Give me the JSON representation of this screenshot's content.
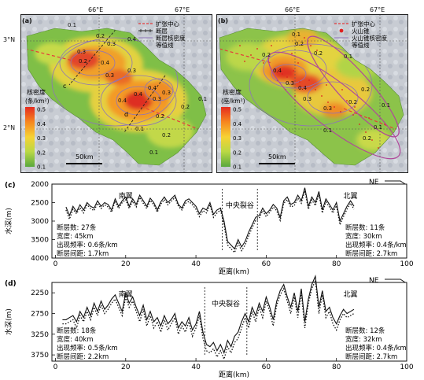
{
  "maps": [
    {
      "id": "a",
      "panel_label": "(a)",
      "lon_labels": [
        "66°E",
        "67°E"
      ],
      "lat_labels": [
        "3°N",
        "2°N"
      ],
      "legend": {
        "title_line1": "核密度",
        "title_line2": "(条/km²)",
        "ticks": [
          "0.5",
          "0.4",
          "0.3",
          "0.2",
          "0.1"
        ]
      },
      "key": [
        {
          "symbol": "red-dashed",
          "label": "扩张中心"
        },
        {
          "symbol": "black-fault",
          "label": "断层"
        },
        {
          "symbol": "contour",
          "label": "断层核密度"
        },
        {
          "symbol": "none",
          "label": "等值线"
        }
      ],
      "scale_label": "50km",
      "contour_labels": [
        "0.1",
        "0.2",
        "0.3",
        "0.4",
        "0.3",
        "0.2",
        "0.3",
        "0.4",
        "0.3",
        "0.4",
        "0.4",
        "0.4",
        "0.3",
        "0.3",
        "0.2",
        "0.2",
        "0.1",
        "0.1",
        "0.2",
        "0.1"
      ],
      "point_labels": [
        "c",
        "d"
      ]
    },
    {
      "id": "b",
      "panel_label": "(b)",
      "lon_labels": [
        "66°E",
        "67°E"
      ],
      "lat_labels": [],
      "legend": {
        "title_line1": "核密度",
        "title_line2": "(座/km²)",
        "ticks": [
          "0.5",
          "0.4",
          "0.3",
          "0.2",
          "0.1"
        ]
      },
      "key": [
        {
          "symbol": "red-dashed",
          "label": "扩张中心"
        },
        {
          "symbol": "red-dot",
          "label": "火山锥"
        },
        {
          "symbol": "contour",
          "label": "火山锥核密度"
        },
        {
          "symbol": "none",
          "label": "等值线"
        }
      ],
      "scale_label": "50km",
      "contour_labels": [
        "0.1",
        "0.2",
        "0.2",
        "0.1",
        "0.2",
        "0.4",
        "0.3",
        "0.4",
        "0.3",
        "0.3",
        "0.2",
        "0.2",
        "0.1",
        "0.1",
        "0.1",
        "0.2"
      ]
    }
  ],
  "colors": {
    "ramp": [
      "#e52b1f",
      "#f6861f",
      "#f7d234",
      "#b9d845",
      "#5aa83d"
    ],
    "spreading_center": "#e53a3a",
    "contour": "#8e74b8",
    "fault": "#222222",
    "volcano": "#e02020",
    "ellipse": "#b0489a"
  },
  "chart_data": [
    {
      "type": "line",
      "panel_label": "(c)",
      "xlabel": "距离(km)",
      "ylabel": "水深(m)",
      "xlim": [
        -1,
        100
      ],
      "ylim": [
        4000,
        2000
      ],
      "xticks": [
        0,
        20,
        40,
        60,
        80,
        100
      ],
      "yticks": [
        2000,
        2500,
        3000,
        3500,
        4000
      ],
      "direction_label": "NE",
      "region_labels": {
        "left": "南翼",
        "center": "中央裂谷",
        "right": "北翼"
      },
      "rift_x": [
        47.5,
        57.5
      ],
      "stats_left": [
        "断层数: 27条",
        "宽度: 45km",
        "出现频率: 0.6条/km",
        "断层间距: 1.7km"
      ],
      "stats_right": [
        "断层数: 11条",
        "宽度: 30km",
        "出现频率: 0.4条/km",
        "断层间距: 2.7km"
      ],
      "series": [
        {
          "style": "solid",
          "x": [
            3,
            4,
            5,
            6,
            7,
            8,
            9,
            10,
            11,
            12,
            13,
            14,
            15,
            16,
            17,
            18,
            19,
            20,
            21,
            22,
            23,
            24,
            25,
            26,
            27,
            28,
            29,
            30,
            31,
            32,
            33,
            34,
            35,
            36,
            37,
            38,
            39,
            40,
            41,
            42,
            43,
            44,
            45,
            46,
            47,
            48,
            49,
            50,
            51,
            52,
            53,
            54,
            55,
            56,
            57,
            58,
            59,
            60,
            61,
            62,
            63,
            64,
            65,
            66,
            67,
            68,
            69,
            70,
            71,
            72,
            73,
            74,
            75,
            76,
            77,
            78,
            79,
            80,
            81,
            82,
            83,
            84,
            85
          ],
          "y": [
            2620,
            2850,
            2600,
            2750,
            2560,
            2700,
            2500,
            2600,
            2650,
            2450,
            2600,
            2500,
            2550,
            2700,
            2400,
            2600,
            2450,
            2350,
            2600,
            2400,
            2550,
            2300,
            2450,
            2600,
            2380,
            2500,
            2700,
            2480,
            2350,
            2500,
            2400,
            2300,
            2550,
            2650,
            2450,
            2400,
            2500,
            2600,
            2800,
            2650,
            2700,
            2500,
            2820,
            2700,
            2650,
            3000,
            3550,
            3650,
            3750,
            3500,
            3700,
            3550,
            3300,
            3100,
            2900,
            2850,
            2650,
            2800,
            2700,
            2550,
            2650,
            2900,
            2450,
            2350,
            2550,
            2500,
            2300,
            2450,
            2100,
            2600,
            2350,
            2500,
            2200,
            2700,
            2400,
            2550,
            2700,
            2500,
            3000,
            2800,
            2600,
            2450,
            2600
          ]
        },
        {
          "style": "dashed",
          "x": [
            3,
            4,
            5,
            6,
            7,
            8,
            9,
            10,
            11,
            12,
            13,
            14,
            15,
            16,
            17,
            18,
            19,
            20,
            21,
            22,
            23,
            24,
            25,
            26,
            27,
            28,
            29,
            30,
            31,
            32,
            33,
            34,
            35,
            36,
            37,
            38,
            39,
            40,
            41,
            42,
            43,
            44,
            45,
            46,
            47,
            48,
            49,
            50,
            51,
            52,
            53,
            54,
            55,
            56,
            57,
            58,
            59,
            60,
            61,
            62,
            63,
            64,
            65,
            66,
            67,
            68,
            69,
            70,
            71,
            72,
            73,
            74,
            75,
            76,
            77,
            78,
            79,
            80,
            81,
            82,
            83,
            84,
            85
          ],
          "y": [
            2700,
            2950,
            2680,
            2800,
            2640,
            2780,
            2560,
            2660,
            2720,
            2520,
            2660,
            2560,
            2620,
            2760,
            2460,
            2660,
            2500,
            2420,
            2660,
            2460,
            2620,
            2360,
            2520,
            2660,
            2440,
            2560,
            2760,
            2540,
            2420,
            2560,
            2460,
            2360,
            2600,
            2700,
            2520,
            2470,
            2560,
            2680,
            2880,
            2720,
            2780,
            2560,
            2900,
            2780,
            2700,
            3100,
            3650,
            3750,
            3850,
            3600,
            3800,
            3650,
            3400,
            3180,
            2980,
            2920,
            2720,
            2880,
            2760,
            2620,
            2720,
            2980,
            2520,
            2420,
            2620,
            2580,
            2380,
            2520,
            2180,
            2680,
            2430,
            2580,
            2280,
            2780,
            2480,
            2620,
            2780,
            2580,
            3100,
            2880,
            2680,
            2520,
            2680
          ]
        }
      ]
    },
    {
      "type": "line",
      "panel_label": "(d)",
      "xlabel": "距离(km)",
      "ylabel": "水深(m)",
      "xlim": [
        -1,
        100
      ],
      "ylim": [
        3900,
        2000
      ],
      "xticks": [
        0,
        20,
        40,
        60,
        80,
        100
      ],
      "yticks": [
        2250,
        2750,
        3250,
        3750
      ],
      "direction_label": "NE",
      "region_labels": {
        "left": "南翼",
        "center": "中央裂谷",
        "right": "北翼"
      },
      "rift_x": [
        42.5,
        54.5
      ],
      "stats_left": [
        "断层数: 18条",
        "宽度: 40km",
        "出现频率: 0.5条/km",
        "断层间距: 2.2km"
      ],
      "stats_right": [
        "断层数: 12条",
        "宽度: 32km",
        "出现频率: 0.4条/km",
        "断层间距: 2.7km"
      ],
      "series": [
        {
          "style": "solid",
          "x": [
            2,
            3,
            4,
            5,
            6,
            7,
            8,
            9,
            10,
            11,
            12,
            13,
            14,
            15,
            16,
            17,
            18,
            19,
            20,
            21,
            22,
            23,
            24,
            25,
            26,
            27,
            28,
            29,
            30,
            31,
            32,
            33,
            34,
            35,
            36,
            37,
            38,
            39,
            40,
            41,
            42,
            43,
            44,
            45,
            46,
            47,
            48,
            49,
            50,
            51,
            52,
            53,
            54,
            55,
            56,
            57,
            58,
            59,
            60,
            61,
            62,
            63,
            64,
            65,
            66,
            67,
            68,
            69,
            70,
            71,
            72,
            73,
            74,
            75,
            76,
            77,
            78,
            79,
            80,
            81,
            82,
            83,
            84,
            85
          ],
          "y": [
            2900,
            2900,
            2850,
            2800,
            2950,
            2700,
            2850,
            2600,
            2800,
            2500,
            2700,
            2450,
            2650,
            2550,
            2400,
            2300,
            2500,
            2700,
            2250,
            2500,
            2350,
            2600,
            2800,
            2550,
            2900,
            2700,
            2950,
            2850,
            3050,
            2800,
            3000,
            2900,
            2750,
            3100,
            2950,
            3050,
            2850,
            3150,
            3000,
            2700,
            3200,
            3500,
            3550,
            3450,
            3650,
            3500,
            3700,
            3400,
            3550,
            3300,
            3200,
            2950,
            2750,
            2950,
            2600,
            2800,
            2500,
            2700,
            2350,
            2600,
            2900,
            2450,
            2200,
            2050,
            2350,
            2600,
            2250,
            2700,
            2150,
            2950,
            2400,
            2050,
            1850,
            2600,
            2200,
            2700,
            2600,
            2850,
            3000,
            2800,
            2650,
            2750,
            2700,
            2650
          ]
        },
        {
          "style": "dashed",
          "x": [
            2,
            3,
            4,
            5,
            6,
            7,
            8,
            9,
            10,
            11,
            12,
            13,
            14,
            15,
            16,
            17,
            18,
            19,
            20,
            21,
            22,
            23,
            24,
            25,
            26,
            27,
            28,
            29,
            30,
            31,
            32,
            33,
            34,
            35,
            36,
            37,
            38,
            39,
            40,
            41,
            42,
            43,
            44,
            45,
            46,
            47,
            48,
            49,
            50,
            51,
            52,
            53,
            54,
            55,
            56,
            57,
            58,
            59,
            60,
            61,
            62,
            63,
            64,
            65,
            66,
            67,
            68,
            69,
            70,
            71,
            72,
            73,
            74,
            75,
            76,
            77,
            78,
            79,
            80,
            81,
            82,
            83,
            84,
            85
          ],
          "y": [
            3000,
            3000,
            2950,
            2900,
            3100,
            2800,
            2950,
            2700,
            2900,
            2600,
            2800,
            2550,
            2750,
            2650,
            2500,
            2400,
            2600,
            2800,
            2350,
            2600,
            2450,
            2700,
            2950,
            2650,
            3050,
            2800,
            3100,
            2950,
            3200,
            2900,
            3150,
            3000,
            2850,
            3250,
            3050,
            3200,
            2950,
            3300,
            3100,
            2800,
            3350,
            3650,
            3700,
            3600,
            3800,
            3650,
            3850,
            3550,
            3700,
            3450,
            3350,
            3100,
            2850,
            3100,
            2700,
            2950,
            2600,
            2850,
            2450,
            2700,
            3050,
            2550,
            2300,
            2150,
            2450,
            2750,
            2350,
            2850,
            2250,
            3100,
            2500,
            2150,
            1950,
            2750,
            2300,
            2850,
            2700,
            3000,
            3150,
            2900,
            2750,
            2850,
            2800,
            2750
          ]
        }
      ]
    }
  ]
}
